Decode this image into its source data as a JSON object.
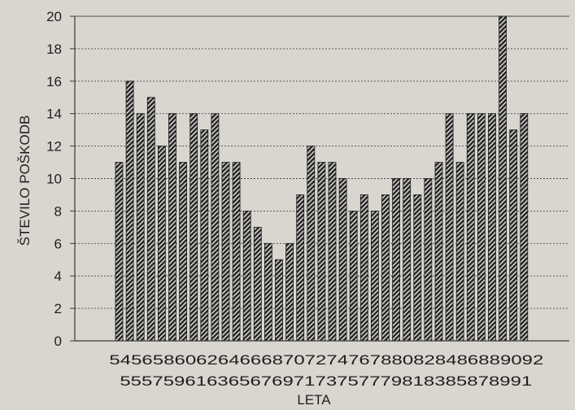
{
  "chart_data": {
    "type": "bar",
    "xlabel": "LETA",
    "ylabel": "ŠTEVILO POŠKODB",
    "ylim": [
      0,
      20
    ],
    "yticks": [
      0,
      2,
      4,
      6,
      8,
      10,
      12,
      14,
      16,
      18,
      20
    ],
    "grid": "horizontal",
    "bar_pattern": "diagonal-hatch",
    "colors": {
      "bar": "#2a2a2a",
      "hatch": "#f2f0ea",
      "background": "#d8d6cf",
      "axis": "#3a3a3a"
    },
    "tick_labels_top": [
      "54",
      "56",
      "58",
      "60",
      "62",
      "64",
      "66",
      "68",
      "70",
      "72",
      "74",
      "76",
      "78",
      "80",
      "82",
      "84",
      "86",
      "88",
      "90",
      "92"
    ],
    "tick_labels_bottom": [
      "55",
      "57",
      "59",
      "61",
      "63",
      "65",
      "67",
      "69",
      "71",
      "73",
      "75",
      "77",
      "79",
      "81",
      "83",
      "85",
      "87",
      "89",
      "91"
    ],
    "categories": [
      "54",
      "55",
      "56",
      "57",
      "58",
      "59",
      "60",
      "61",
      "62",
      "63",
      "64",
      "65",
      "66",
      "67",
      "68",
      "69",
      "70",
      "71",
      "72",
      "73",
      "74",
      "75",
      "76",
      "77",
      "78",
      "79",
      "80",
      "81",
      "82",
      "83",
      "84",
      "85",
      "86",
      "87",
      "88",
      "89",
      "90",
      "91",
      "92"
    ],
    "values": [
      11,
      16,
      14,
      15,
      12,
      14,
      11,
      14,
      13,
      14,
      11,
      11,
      8,
      7,
      6,
      5,
      6,
      9,
      12,
      11,
      11,
      10,
      8,
      9,
      8,
      9,
      10,
      10,
      9,
      10,
      11,
      14,
      11,
      14,
      14,
      14,
      20,
      13,
      14
    ]
  }
}
